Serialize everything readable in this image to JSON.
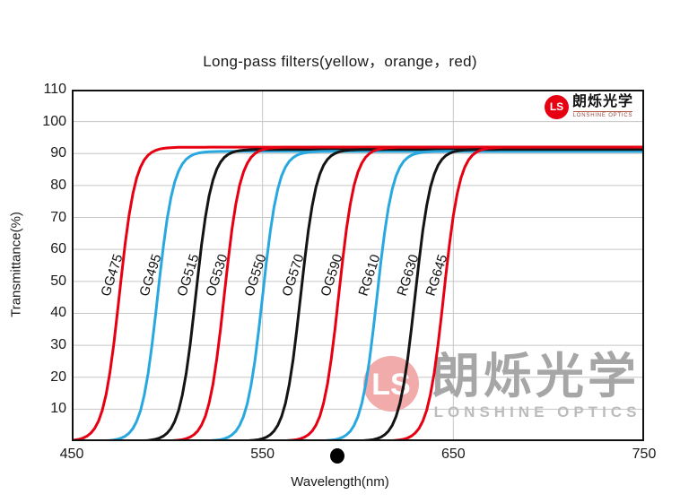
{
  "title": "Long-pass filters(yellow，orange，red)",
  "axis": {
    "xlabel": "Wavelength(nm)",
    "ylabel": "Transmittance(%)"
  },
  "brand_logo": {
    "ls_text": "LS",
    "name_cn": "朗烁光学",
    "name_en": "LONSHINE OPTICS"
  },
  "watermark": {
    "ls_text": "LS",
    "name_cn": "朗烁光学",
    "name_en": "LONSHINE OPTICS"
  },
  "colors": {
    "red": "#e60012",
    "blue": "#29a8e0",
    "black": "#141414",
    "grid": "#c6c6c6",
    "frame": "#111111",
    "watermark_pink": "#f2abab",
    "watermark_gray": "#a6a6a6",
    "watermark_gray_light": "#bcbcbc"
  },
  "chart_data": {
    "type": "line",
    "title": "Long-pass filters(yellow，orange，red)",
    "xlabel": "Wavelength(nm)",
    "ylabel": "Transmittance(%)",
    "xlim": [
      450,
      750
    ],
    "ylim": [
      0,
      110
    ],
    "x_ticks": [
      450,
      550,
      650,
      750
    ],
    "y_ticks": [
      10,
      20,
      30,
      40,
      50,
      60,
      70,
      80,
      90,
      100,
      110
    ],
    "grid": true,
    "legend_position": "none",
    "curve_shape": "sigmoid rise from ~0% to plateau; 50% transmittance at cutoff wavelength",
    "rise_width_nm": 4.2,
    "series": [
      {
        "name": "GG475",
        "color": "red",
        "cutoff_nm": 475,
        "plateau_percent": 92.0
      },
      {
        "name": "GG495",
        "color": "blue",
        "cutoff_nm": 495,
        "plateau_percent": 90.7
      },
      {
        "name": "OG515",
        "color": "black",
        "cutoff_nm": 515,
        "plateau_percent": 91.3
      },
      {
        "name": "OG530",
        "color": "red",
        "cutoff_nm": 530,
        "plateau_percent": 92.0
      },
      {
        "name": "OG550",
        "color": "blue",
        "cutoff_nm": 550,
        "plateau_percent": 90.7
      },
      {
        "name": "OG570",
        "color": "black",
        "cutoff_nm": 570,
        "plateau_percent": 91.3
      },
      {
        "name": "OG590",
        "color": "red",
        "cutoff_nm": 590,
        "plateau_percent": 92.0
      },
      {
        "name": "RG610",
        "color": "blue",
        "cutoff_nm": 610,
        "plateau_percent": 90.7
      },
      {
        "name": "RG630",
        "color": "black",
        "cutoff_nm": 630,
        "plateau_percent": 91.3
      },
      {
        "name": "RG645",
        "color": "red",
        "cutoff_nm": 645,
        "plateau_percent": 92.0
      }
    ],
    "marker_dot_nm": 589
  }
}
